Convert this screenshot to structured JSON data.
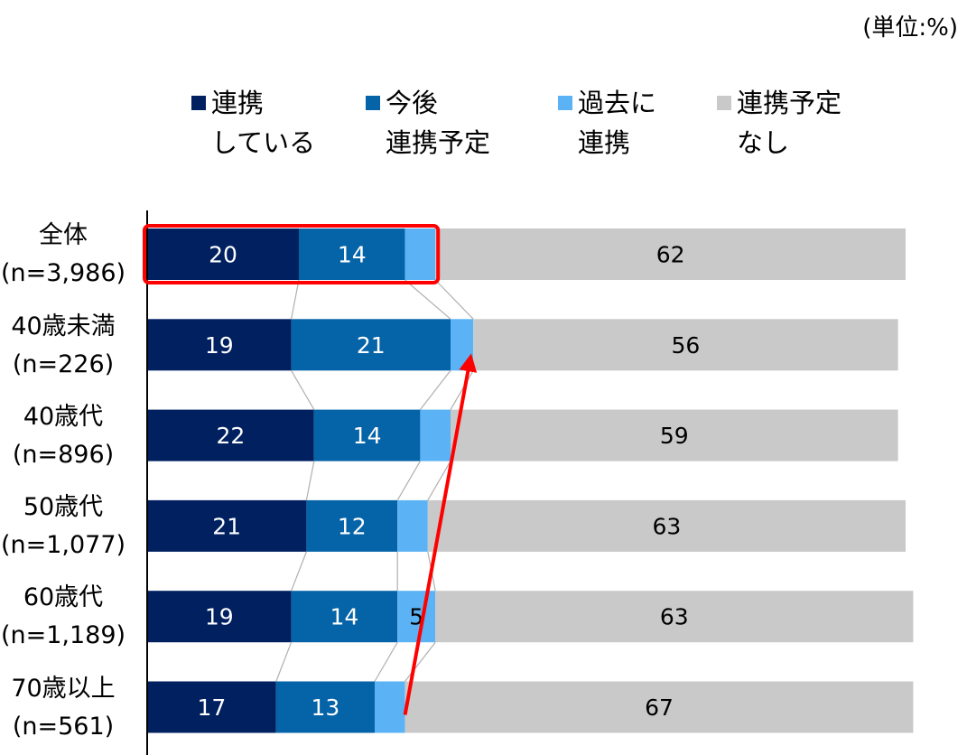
{
  "unit_label": "(単位:%)",
  "legend": [
    {
      "line1": "連携",
      "line2": "している",
      "color": "#002060"
    },
    {
      "line1": "今後",
      "line2": "連携予定",
      "color": "#0563A8"
    },
    {
      "line1": "過去に",
      "line2": "連携",
      "color": "#5BB3F5"
    },
    {
      "line1": "連携予定",
      "line2": "なし",
      "color": "#C9C9C9"
    }
  ],
  "rows": [
    {
      "label": "全体",
      "n": "(n=3,986)"
    },
    {
      "label": "40歳未満",
      "n": "(n=226)"
    },
    {
      "label": "40歳代",
      "n": "(n=896)"
    },
    {
      "label": "50歳代",
      "n": "(n=1,077)"
    },
    {
      "label": "60歳代",
      "n": "(n=1,189)"
    },
    {
      "label": "70歳以上",
      "n": "(n=561)"
    }
  ],
  "chart_data": {
    "type": "bar",
    "orientation": "horizontal",
    "stacked": true,
    "categories": [
      "全体(n=3,986)",
      "40歳未満(n=226)",
      "40歳代(n=896)",
      "50歳代(n=1,077)",
      "60歳代(n=1,189)",
      "70歳以上(n=561)"
    ],
    "series": [
      {
        "name": "連携している",
        "values": [
          20,
          19,
          22,
          21,
          19,
          17
        ],
        "labels": [
          "20",
          "19",
          "22",
          "21",
          "19",
          "17"
        ],
        "color": "#002060"
      },
      {
        "name": "今後連携予定",
        "values": [
          14,
          21,
          14,
          12,
          14,
          13
        ],
        "labels": [
          "14",
          "21",
          "14",
          "12",
          "14",
          "13"
        ],
        "color": "#0563A8"
      },
      {
        "name": "過去に連携",
        "values": [
          4,
          3,
          4,
          4,
          5,
          4
        ],
        "labels": [
          "",
          "",
          "",
          "",
          "5",
          ""
        ],
        "color": "#5BB3F5"
      },
      {
        "name": "連携予定なし",
        "values": [
          62,
          56,
          59,
          63,
          63,
          67
        ],
        "labels": [
          "62",
          "56",
          "59",
          "63",
          "63",
          "67"
        ],
        "color": "#C9C9C9"
      }
    ],
    "xlim": [
      0,
      100
    ],
    "unit": "%",
    "highlight_box_row": 0,
    "highlight_color": "#FF0000",
    "arrow_color": "#FF0000"
  }
}
